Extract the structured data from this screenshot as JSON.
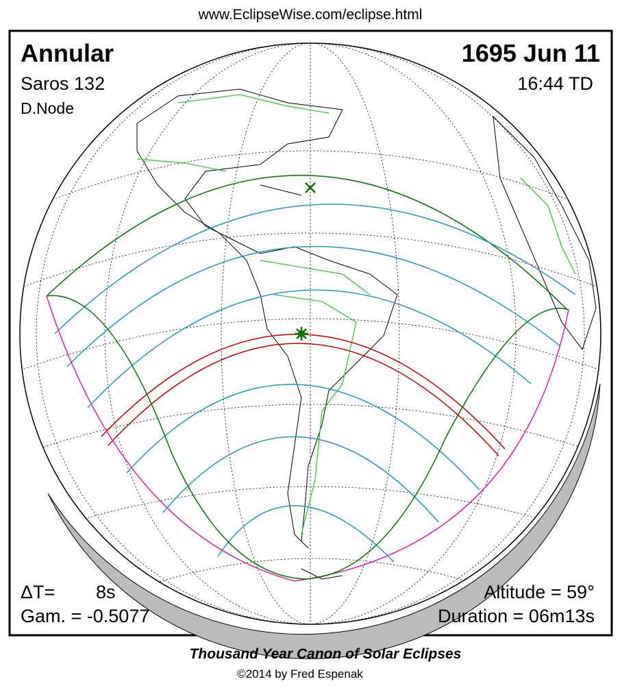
{
  "header": {
    "url": "www.EclipseWise.com/eclipse.html"
  },
  "info": {
    "type": "Annular",
    "date": "1695 Jun 11",
    "saros": "Saros 132",
    "time": "16:44 TD",
    "node": "D.Node",
    "delta_t_label": "ΔT=",
    "delta_t_value": "8s",
    "altitude": "Altitude = 59°",
    "gamma": "Gam. = -0.5077",
    "duration": "Duration = 06m13s"
  },
  "footer": {
    "title": "Thousand Year Canon of Solar Eclipses",
    "credit": "©2014 by Fred Espenak"
  }
}
